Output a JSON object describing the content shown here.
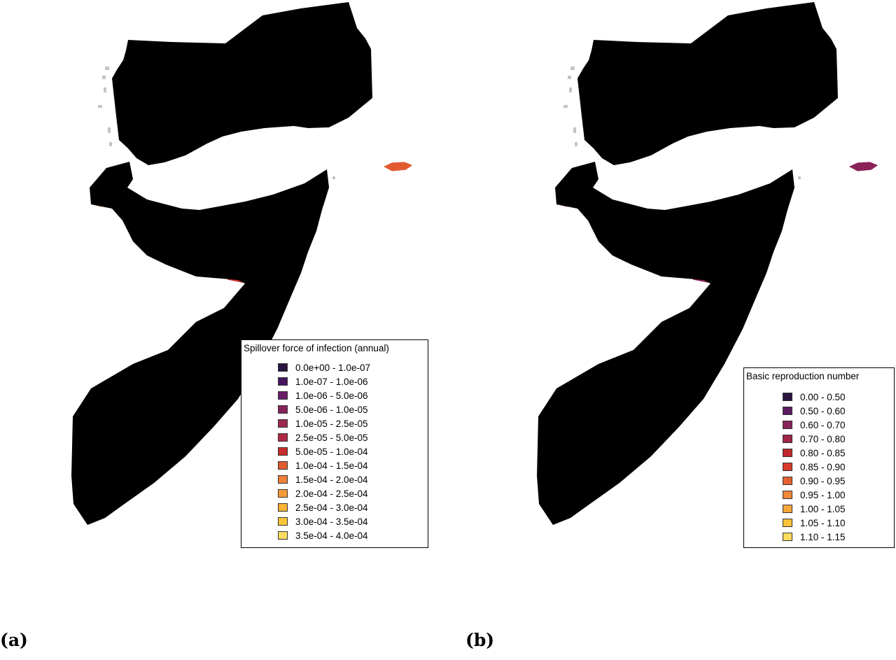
{
  "panels": [
    {
      "label": "(a)",
      "legend_title": "Spillover force of infection (annual)",
      "legend_items": [
        {
          "label": "0.0e+00 - 1.0e-07",
          "color": "#2b1540"
        },
        {
          "label": "1.0e-07 - 1.0e-06",
          "color": "#481660"
        },
        {
          "label": "1.0e-06 - 5.0e-06",
          "color": "#6c1d6a"
        },
        {
          "label": "5.0e-06 - 1.0e-05",
          "color": "#86225c"
        },
        {
          "label": "1.0e-05 - 2.5e-05",
          "color": "#9c2753"
        },
        {
          "label": "2.5e-05 - 5.0e-05",
          "color": "#b02846"
        },
        {
          "label": "5.0e-05 - 1.0e-04",
          "color": "#c92d2d"
        },
        {
          "label": "1.0e-04 - 1.5e-04",
          "color": "#e25a30"
        },
        {
          "label": "1.5e-04 - 2.0e-04",
          "color": "#f0823a"
        },
        {
          "label": "2.0e-04 - 2.5e-04",
          "color": "#f49b3a"
        },
        {
          "label": "2.5e-04 - 3.0e-04",
          "color": "#f8b235"
        },
        {
          "label": "3.0e-04 - 3.5e-04",
          "color": "#fbc63a"
        },
        {
          "label": "3.5e-04 - 4.0e-04",
          "color": "#fcdc64"
        }
      ]
    },
    {
      "label": "(b)",
      "legend_title": "Basic reproduction number",
      "legend_items": [
        {
          "label": "0.00 - 0.50",
          "color": "#2b1540"
        },
        {
          "label": "0.50 - 0.60",
          "color": "#5c1a62"
        },
        {
          "label": "0.60 - 0.70",
          "color": "#8a2258"
        },
        {
          "label": "0.70 - 0.80",
          "color": "#a02649"
        },
        {
          "label": "0.80 - 0.85",
          "color": "#c0262d"
        },
        {
          "label": "0.85 - 0.90",
          "color": "#d73c2c"
        },
        {
          "label": "0.90 - 0.95",
          "color": "#e6602f"
        },
        {
          "label": "0.95 - 1.00",
          "color": "#f0873a"
        },
        {
          "label": "1.00 - 1.05",
          "color": "#f6a63a"
        },
        {
          "label": "1.05 - 1.10",
          "color": "#fbc23a"
        },
        {
          "label": "1.10 - 1.15",
          "color": "#fcda5e"
        }
      ]
    }
  ]
}
